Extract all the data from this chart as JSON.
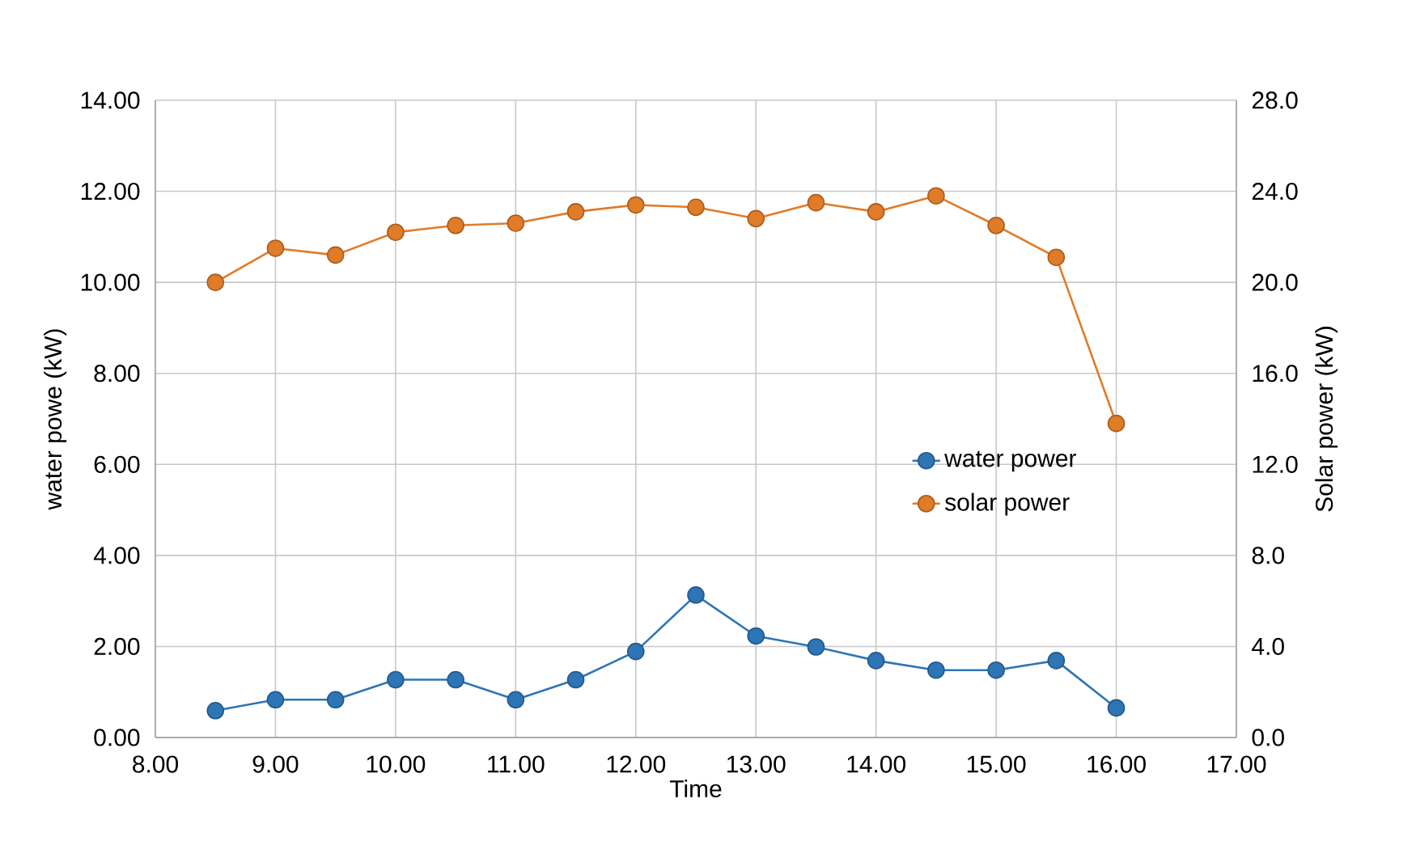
{
  "chart_data": {
    "type": "line",
    "xlabel": "Time",
    "ylabel": "water powe (kW)",
    "y2label": "Solar power (kW)",
    "x": [
      8.5,
      9,
      9.5,
      10,
      10.5,
      11,
      11.5,
      12,
      12.5,
      13,
      13.5,
      14,
      14.5,
      15,
      15.5,
      16
    ],
    "series": [
      {
        "name": "water power",
        "color": "#2e75b6",
        "values": [
          0.59,
          0.83,
          0.83,
          1.27,
          1.27,
          0.83,
          1.27,
          1.89,
          3.13,
          2.23,
          1.99,
          1.69,
          1.48,
          1.48,
          1.69,
          0.65
        ]
      },
      {
        "name": "solar power",
        "color": "#e07b28",
        "axis": "y2",
        "values": [
          20.0,
          21.5,
          21.2,
          22.2,
          22.5,
          22.6,
          23.1,
          23.4,
          23.3,
          22.8,
          23.5,
          23.1,
          23.8,
          22.5,
          21.1,
          13.8
        ]
      }
    ],
    "xlim": [
      8,
      17
    ],
    "xticks": [
      {
        "value": 8,
        "label": "8.00"
      },
      {
        "value": 9,
        "label": "9.00"
      },
      {
        "value": 10,
        "label": "10.00"
      },
      {
        "value": 11,
        "label": "11.00"
      },
      {
        "value": 12,
        "label": "12.00"
      },
      {
        "value": 13,
        "label": "13.00"
      },
      {
        "value": 14,
        "label": "14.00"
      },
      {
        "value": 15,
        "label": "15.00"
      },
      {
        "value": 16,
        "label": "16.00"
      },
      {
        "value": 17,
        "label": "17.00"
      }
    ],
    "ylim": [
      0,
      14
    ],
    "yticks": [
      {
        "value": 0,
        "label": "0.00"
      },
      {
        "value": 2,
        "label": "2.00"
      },
      {
        "value": 4,
        "label": "4.00"
      },
      {
        "value": 6,
        "label": "6.00"
      },
      {
        "value": 8,
        "label": "8.00"
      },
      {
        "value": 10,
        "label": "10.00"
      },
      {
        "value": 12,
        "label": "12.00"
      },
      {
        "value": 14,
        "label": "14.00"
      }
    ],
    "y2lim": [
      0,
      28
    ],
    "y2ticks": [
      {
        "value": 0,
        "label": "0.0"
      },
      {
        "value": 4,
        "label": "4.0"
      },
      {
        "value": 8,
        "label": "8.0"
      },
      {
        "value": 12,
        "label": "12.0"
      },
      {
        "value": 16,
        "label": "16.0"
      },
      {
        "value": 20,
        "label": "20.0"
      },
      {
        "value": 24,
        "label": "24.0"
      },
      {
        "value": 28,
        "label": "28.0"
      }
    ],
    "grid": true,
    "legend": "right",
    "marker": "circle",
    "line_style": "solid"
  }
}
